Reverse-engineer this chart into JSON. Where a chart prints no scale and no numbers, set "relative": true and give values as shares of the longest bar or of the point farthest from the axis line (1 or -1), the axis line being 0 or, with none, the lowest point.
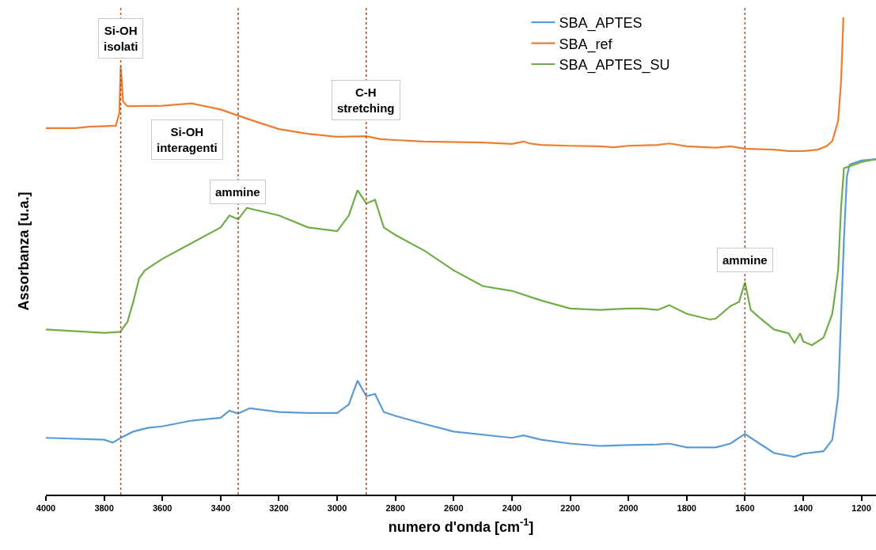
{
  "chart_data": {
    "type": "line",
    "relative": true,
    "xlabel": "numero d'onda [cm$^{-1}$]",
    "ylabel": "Assorbanza [u.a.]",
    "xlim": [
      4000,
      1150
    ],
    "xticks": [
      4000,
      3800,
      3600,
      3400,
      3200,
      3000,
      2800,
      2600,
      2400,
      2200,
      2000,
      1800,
      1600,
      1400,
      1200
    ],
    "legend": "top right",
    "marker": "none",
    "line_style": "solid",
    "series": [
      {
        "name": "SBA_APTES",
        "color": "#5b9bd5",
        "x": [
          4000,
          3800,
          3770,
          3740,
          3700,
          3650,
          3600,
          3500,
          3400,
          3370,
          3340,
          3300,
          3200,
          3100,
          3000,
          2960,
          2930,
          2900,
          2870,
          2840,
          2800,
          2700,
          2600,
          2400,
          2360,
          2300,
          2200,
          2100,
          2000,
          1900,
          1860,
          1800,
          1700,
          1650,
          1600,
          1550,
          1500,
          1430,
          1400,
          1330,
          1300,
          1280,
          1260,
          1250,
          1240,
          1200,
          1150
        ],
        "values": [
          0.119,
          0.115,
          0.109,
          0.12,
          0.132,
          0.14,
          0.143,
          0.155,
          0.161,
          0.176,
          0.17,
          0.181,
          0.173,
          0.171,
          0.171,
          0.189,
          0.239,
          0.206,
          0.211,
          0.173,
          0.165,
          0.148,
          0.132,
          0.119,
          0.124,
          0.115,
          0.107,
          0.102,
          0.104,
          0.105,
          0.107,
          0.099,
          0.099,
          0.107,
          0.127,
          0.107,
          0.087,
          0.079,
          0.086,
          0.091,
          0.115,
          0.206,
          0.535,
          0.667,
          0.692,
          0.7,
          0.703
        ]
      },
      {
        "name": "SBA_ref",
        "color": "#ed7d31",
        "x": [
          4000,
          3900,
          3850,
          3760,
          3748,
          3743,
          3735,
          3720,
          3700,
          3600,
          3500,
          3400,
          3300,
          3200,
          3100,
          3000,
          2900,
          2850,
          2800,
          2700,
          2500,
          2400,
          2360,
          2340,
          2300,
          2200,
          2100,
          2050,
          2000,
          1900,
          1860,
          1800,
          1700,
          1650,
          1600,
          1500,
          1450,
          1400,
          1350,
          1320,
          1300,
          1280,
          1270,
          1265,
          1262
        ],
        "values": [
          0.768,
          0.768,
          0.771,
          0.773,
          0.799,
          0.898,
          0.824,
          0.814,
          0.814,
          0.815,
          0.82,
          0.807,
          0.786,
          0.766,
          0.756,
          0.75,
          0.751,
          0.745,
          0.743,
          0.74,
          0.738,
          0.735,
          0.74,
          0.736,
          0.733,
          0.731,
          0.73,
          0.728,
          0.731,
          0.733,
          0.736,
          0.73,
          0.727,
          0.73,
          0.725,
          0.723,
          0.72,
          0.72,
          0.723,
          0.73,
          0.741,
          0.783,
          0.865,
          0.947,
          1.0
        ]
      },
      {
        "name": "SBA_APTES_SU",
        "color": "#70ad47",
        "x": [
          4000,
          3800,
          3745,
          3720,
          3700,
          3680,
          3660,
          3600,
          3500,
          3400,
          3370,
          3340,
          3310,
          3200,
          3100,
          3000,
          2960,
          2930,
          2900,
          2870,
          2840,
          2800,
          2700,
          2600,
          2500,
          2400,
          2300,
          2200,
          2100,
          2000,
          1950,
          1900,
          1860,
          1800,
          1720,
          1700,
          1650,
          1620,
          1600,
          1580,
          1550,
          1500,
          1450,
          1430,
          1410,
          1400,
          1370,
          1330,
          1300,
          1280,
          1270,
          1260,
          1200,
          1150
        ],
        "values": [
          0.346,
          0.339,
          0.341,
          0.362,
          0.404,
          0.453,
          0.47,
          0.494,
          0.527,
          0.56,
          0.585,
          0.577,
          0.601,
          0.585,
          0.56,
          0.552,
          0.585,
          0.638,
          0.61,
          0.618,
          0.56,
          0.544,
          0.511,
          0.47,
          0.437,
          0.427,
          0.407,
          0.39,
          0.387,
          0.39,
          0.39,
          0.387,
          0.397,
          0.379,
          0.367,
          0.369,
          0.395,
          0.404,
          0.445,
          0.387,
          0.371,
          0.346,
          0.338,
          0.318,
          0.338,
          0.321,
          0.313,
          0.329,
          0.379,
          0.47,
          0.601,
          0.684,
          0.697,
          0.703
        ]
      }
    ],
    "ref_lines": [
      {
        "axis": "x",
        "value": 3743,
        "color": "#a0522d",
        "line_style": "dotted"
      },
      {
        "axis": "x",
        "value": 3340,
        "color": "#a0522d",
        "line_style": "dotted"
      },
      {
        "axis": "x",
        "value": 2900,
        "color": "#a0522d",
        "line_style": "dotted"
      },
      {
        "axis": "x",
        "value": 1600,
        "color": "#a0522d",
        "line_style": "dotted"
      }
    ],
    "annotations": [
      {
        "text": "Si-OH\nisolati",
        "x": 3743,
        "y": 0.956
      },
      "Si-OH\ninteragenti",
      {
        "text": "ammine",
        "x": 3340,
        "y": 0.634
      },
      {
        "text": "C-H\nstretching",
        "x": 2900,
        "y": 0.827
      },
      {
        "text": "ammine",
        "x": 1600,
        "y": 0.491
      }
    ]
  }
}
